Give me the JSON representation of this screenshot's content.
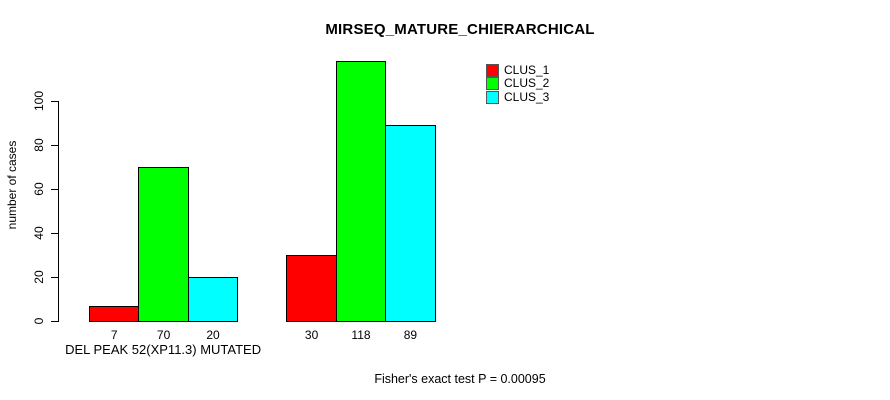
{
  "title": "MIRSEQ_MATURE_CHIERARCHICAL",
  "footer": {
    "caption": "Fisher's exact test P = 0.00095"
  },
  "chart_data": {
    "type": "bar",
    "title": "MIRSEQ_MATURE_CHIERARCHICAL",
    "xlabel": "",
    "ylabel": "number of cases",
    "ylim": [
      0,
      100
    ],
    "yticks": [
      0,
      20,
      40,
      60,
      80,
      100
    ],
    "grid": false,
    "legend_position": "top-right",
    "series": [
      {
        "name": "CLUS_1",
        "color": "#ff0000"
      },
      {
        "name": "CLUS_2",
        "color": "#00ff00"
      },
      {
        "name": "CLUS_3",
        "color": "#00ffff"
      }
    ],
    "groups": [
      {
        "label": "DEL PEAK 52(XP11.3) MUTATED",
        "values": [
          7,
          70,
          20
        ],
        "value_labels": [
          "7",
          "70",
          "20"
        ]
      },
      {
        "label": "",
        "values": [
          30,
          118,
          89
        ],
        "value_labels": [
          "30",
          "118",
          "89"
        ]
      }
    ],
    "annotation": "Fisher's exact test P = 0.00095"
  }
}
